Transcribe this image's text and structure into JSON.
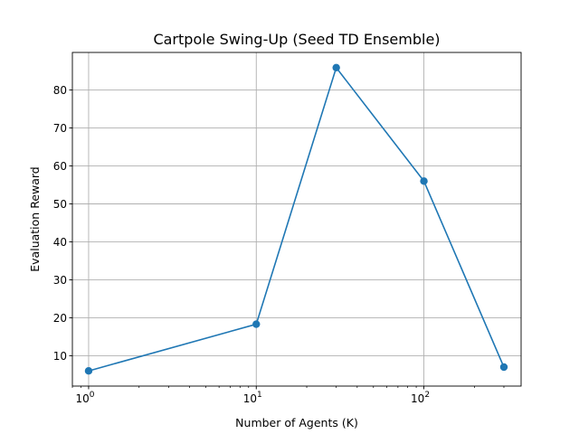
{
  "chart_data": {
    "type": "line",
    "title": "Cartpole Swing-Up (Seed TD Ensemble)",
    "xlabel": "Number of Agents (K)",
    "ylabel": "Evaluation Reward",
    "xscale": "log",
    "xlim": [
      0.8,
      380
    ],
    "ylim": [
      2.0,
      89.9
    ],
    "x_ticks": [
      {
        "value": 1,
        "base": "10",
        "exp": "0"
      },
      {
        "value": 10,
        "base": "10",
        "exp": "1"
      },
      {
        "value": 100,
        "base": "10",
        "exp": "2"
      }
    ],
    "y_ticks": [
      10,
      20,
      30,
      40,
      50,
      60,
      70,
      80
    ],
    "grid": true,
    "series": [
      {
        "color": "#1f77b4",
        "x": [
          1,
          10,
          30,
          100,
          300
        ],
        "y": [
          6.0,
          18.3,
          85.9,
          56.0,
          7.0
        ]
      }
    ]
  }
}
